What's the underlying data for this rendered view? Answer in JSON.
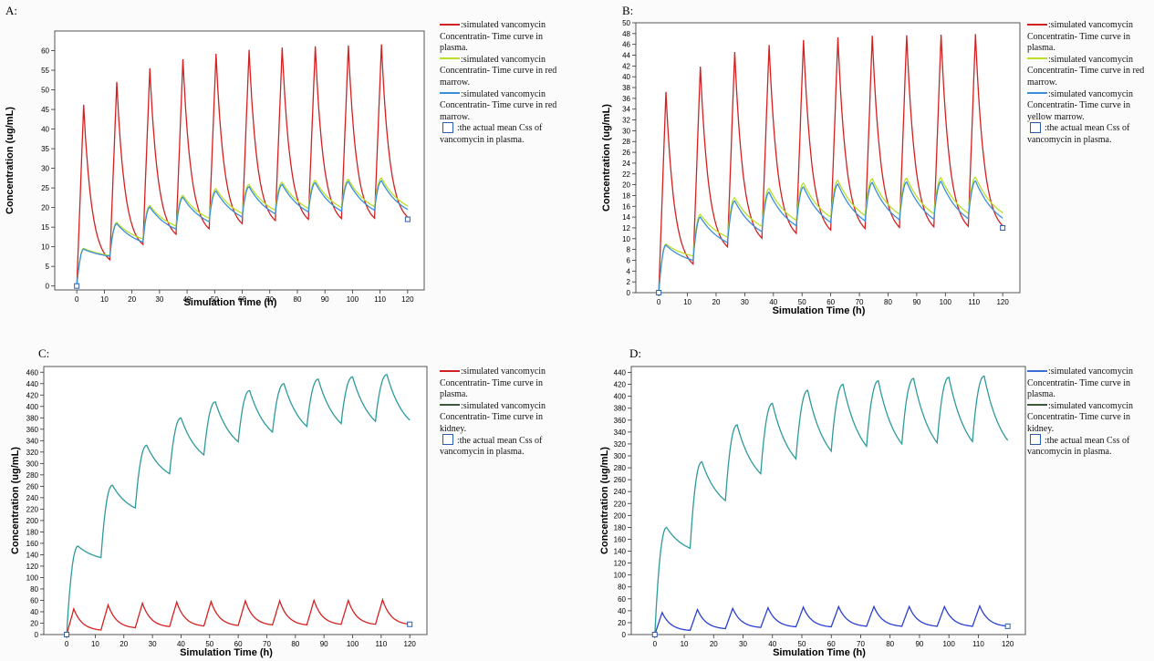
{
  "panels": [
    {
      "id": "A",
      "label": "A:",
      "legend": [
        {
          "type": "line",
          "color": "#d42020",
          "text": ":simulated vancomycin Concentratin- Time curve in plasma."
        },
        {
          "type": "line",
          "color": "#b8e028",
          "text": ":simulated vancomycin Concentratin- Time curve in red marrow."
        },
        {
          "type": "line",
          "color": "#3a8fd8",
          "text": ":simulated vancomycin Concentratin- Time curve in red marrow."
        },
        {
          "type": "box",
          "color": "#2a5cb0",
          "text": ":the actual  mean Css of vancomycin  in plasma."
        }
      ]
    },
    {
      "id": "B",
      "label": "B:",
      "legend": [
        {
          "type": "line",
          "color": "#d42020",
          "text": ":simulated vancomycin Concentratin- Time curve in plasma."
        },
        {
          "type": "line",
          "color": "#b8e028",
          "text": ":simulated vancomycin Concentratin- Time curve in red marrow."
        },
        {
          "type": "line",
          "color": "#3a8fd8",
          "text": ":simulated vancomycin Concentratin- Time curve in yellow marrow."
        },
        {
          "type": "box",
          "color": "#2a5cb0",
          "text": ":the actual  mean Css of vancomycin  in plasma."
        }
      ]
    },
    {
      "id": "C",
      "label": "C:",
      "legend": [
        {
          "type": "line",
          "color": "#d42020",
          "text": ":simulated vancomycin Concentratin- Time curve in plasma."
        },
        {
          "type": "line",
          "color": "#3a5a3a",
          "text": ":simulated vancomycin Concentratin- Time curve in kidney."
        },
        {
          "type": "box",
          "color": "#2a5cb0",
          "text": ":the actual  mean Css of vancomycin  in plasma."
        }
      ]
    },
    {
      "id": "D",
      "label": "D:",
      "legend": [
        {
          "type": "line",
          "color": "#3a6fd8",
          "text": ":simulated vancomycin Concentratin- Time curve in plasma."
        },
        {
          "type": "line",
          "color": "#3a5a3a",
          "text": ":simulated vancomycin Concentratin- Time curve in kidney."
        },
        {
          "type": "box",
          "color": "#2a5cb0",
          "text": ":the actual  mean Css of vancomycin  in plasma."
        }
      ]
    }
  ],
  "chart_data": [
    {
      "panel": "A",
      "type": "line",
      "xlabel": "Simulation Time (h)",
      "ylabel": "Concentration (ug/mL)",
      "xlim": [
        -8,
        126
      ],
      "ylim": [
        -1,
        65
      ],
      "xticks": [
        0,
        10,
        20,
        30,
        40,
        50,
        60,
        70,
        80,
        90,
        100,
        110,
        120
      ],
      "yticks": [
        0,
        5,
        10,
        15,
        20,
        25,
        30,
        35,
        40,
        45,
        50,
        55,
        60
      ],
      "grid": false,
      "series": [
        {
          "name": "plasma",
          "color": "#d42020",
          "dosing": {
            "interval": 12,
            "infusion": 2.5,
            "peaks": [
              46.2,
              52,
              55.5,
              57.8,
              59.2,
              60.2,
              60.8,
              61.1,
              61.3,
              61.6
            ],
            "troughs": [
              6.7,
              10.6,
              13.2,
              14.6,
              15.9,
              16.7,
              17.0,
              17.2,
              17.3,
              17.6
            ],
            "start": 0
          }
        },
        {
          "name": "red marrow",
          "color": "#b8e028",
          "dosing": {
            "interval": 12,
            "infusion": 2.5,
            "peaks": [
              9.6,
              16.2,
              20.5,
              23.1,
              24.8,
              25.9,
              26.5,
              26.9,
              27.2,
              27.5
            ],
            "troughs": [
              7.8,
              12.0,
              15.3,
              17.3,
              18.5,
              19.3,
              19.8,
              20.0,
              20.2,
              20.4
            ],
            "start": 0,
            "shape": "tissue"
          }
        },
        {
          "name": "red marrow",
          "color": "#3a8fd8",
          "dosing": {
            "interval": 12,
            "infusion": 2.5,
            "peaks": [
              9.4,
              15.9,
              20.1,
              22.6,
              24.2,
              25.3,
              25.9,
              26.3,
              26.6,
              26.8
            ],
            "troughs": [
              7.6,
              11.2,
              14.5,
              16.4,
              17.6,
              18.4,
              18.9,
              19.1,
              19.3,
              19.5
            ],
            "start": 0,
            "shape": "tissue"
          }
        }
      ],
      "observed": [
        {
          "x": 0,
          "y": 0
        },
        {
          "x": 120,
          "y": 17
        }
      ]
    },
    {
      "panel": "B",
      "type": "line",
      "xlabel": "Simulation Time (h)",
      "ylabel": "Concentration (ug/mL)",
      "xlim": [
        -8,
        126
      ],
      "ylim": [
        0,
        50
      ],
      "xticks": [
        0,
        10,
        20,
        30,
        40,
        50,
        60,
        70,
        80,
        90,
        100,
        110,
        120
      ],
      "yticks": [
        0,
        2,
        4,
        6,
        8,
        10,
        12,
        14,
        16,
        18,
        20,
        22,
        24,
        26,
        28,
        30,
        32,
        34,
        36,
        38,
        40,
        42,
        44,
        46,
        48,
        50
      ],
      "grid": false,
      "series": [
        {
          "name": "plasma",
          "color": "#d42020",
          "dosing": {
            "interval": 12,
            "infusion": 2.5,
            "peaks": [
              37.2,
              41.9,
              44.6,
              45.9,
              46.8,
              47.3,
              47.6,
              47.7,
              47.8,
              47.9
            ],
            "troughs": [
              5.3,
              8.5,
              10.1,
              11.0,
              11.6,
              11.9,
              12.1,
              12.2,
              12.3,
              12.4
            ],
            "start": 0
          }
        },
        {
          "name": "red marrow",
          "color": "#b8e028",
          "dosing": {
            "interval": 12,
            "infusion": 2.5,
            "peaks": [
              9.0,
              14.5,
              17.6,
              19.3,
              20.3,
              20.8,
              21.1,
              21.2,
              21.3,
              21.4
            ],
            "troughs": [
              6.8,
              10.3,
              12.3,
              13.4,
              14.0,
              14.3,
              14.5,
              14.6,
              14.7,
              14.8
            ],
            "start": 0,
            "shape": "tissue"
          }
        },
        {
          "name": "yellow marrow",
          "color": "#3a8fd8",
          "dosing": {
            "interval": 12,
            "infusion": 2.5,
            "peaks": [
              8.8,
              14.0,
              17.0,
              18.6,
              19.6,
              20.1,
              20.4,
              20.5,
              20.6,
              20.7
            ],
            "troughs": [
              6.0,
              9.3,
              11.3,
              12.4,
              13.0,
              13.3,
              13.5,
              13.6,
              13.7,
              13.8
            ],
            "start": 0,
            "shape": "tissue"
          }
        }
      ],
      "observed": [
        {
          "x": 0,
          "y": 0
        },
        {
          "x": 120,
          "y": 12
        }
      ]
    },
    {
      "panel": "C",
      "type": "line",
      "xlabel": "Simulation Time (h)",
      "ylabel": "Concentration (ug/mL)",
      "xlim": [
        -8,
        126
      ],
      "ylim": [
        0,
        470
      ],
      "xticks": [
        0,
        10,
        20,
        30,
        40,
        50,
        60,
        70,
        80,
        90,
        100,
        110,
        120
      ],
      "yticks": [
        0,
        20,
        40,
        60,
        80,
        100,
        120,
        140,
        160,
        180,
        200,
        220,
        240,
        260,
        280,
        300,
        320,
        340,
        360,
        380,
        400,
        420,
        440,
        460
      ],
      "grid": false,
      "series": [
        {
          "name": "plasma",
          "color": "#d42020",
          "dosing": {
            "interval": 12,
            "infusion": 2.5,
            "peaks": [
              45,
              52,
              55,
              57,
              58,
              59,
              59,
              60,
              60,
              61
            ],
            "troughs": [
              8,
              12,
              14,
              15,
              16,
              17,
              17,
              18,
              18,
              18
            ],
            "start": 0
          }
        },
        {
          "name": "kidney",
          "color": "#2e9a9a",
          "dosing": {
            "interval": 12,
            "infusion": 4,
            "peaks": [
              155,
              262,
              332,
              380,
              408,
              428,
              440,
              448,
              452,
              456
            ],
            "troughs": [
              135,
              222,
              282,
              315,
              338,
              355,
              365,
              370,
              374,
              376
            ],
            "start": 0,
            "shape": "kidney"
          }
        }
      ],
      "observed": [
        {
          "x": 0,
          "y": 0
        },
        {
          "x": 120,
          "y": 18
        }
      ]
    },
    {
      "panel": "D",
      "type": "line",
      "xlabel": "Simulation Time (h)",
      "ylabel": "Concentration (ug/mL)",
      "xlim": [
        -8,
        126
      ],
      "ylim": [
        0,
        450
      ],
      "xticks": [
        0,
        10,
        20,
        30,
        40,
        50,
        60,
        70,
        80,
        90,
        100,
        110,
        120
      ],
      "yticks": [
        0,
        20,
        40,
        60,
        80,
        100,
        120,
        140,
        160,
        180,
        200,
        220,
        240,
        260,
        280,
        300,
        320,
        340,
        360,
        380,
        400,
        420,
        440
      ],
      "grid": false,
      "series": [
        {
          "name": "plasma",
          "color": "#2a3fd0",
          "dosing": {
            "interval": 12,
            "infusion": 2.5,
            "peaks": [
              37,
              42,
              44,
              45,
              46,
              47,
              47,
              47,
              47,
              48
            ],
            "troughs": [
              7,
              10,
              12,
              13,
              13,
              14,
              14,
              14,
              14,
              14
            ],
            "start": 0
          }
        },
        {
          "name": "kidney",
          "color": "#2e9a9a",
          "dosing": {
            "interval": 12,
            "infusion": 4,
            "peaks": [
              180,
              290,
              352,
              388,
              410,
              420,
              426,
              430,
              432,
              434
            ],
            "troughs": [
              145,
              225,
              270,
              295,
              308,
              316,
              320,
              322,
              324,
              326
            ],
            "start": 0,
            "shape": "kidney"
          }
        }
      ],
      "observed": [
        {
          "x": 0,
          "y": 0
        },
        {
          "x": 120,
          "y": 14
        }
      ]
    }
  ]
}
